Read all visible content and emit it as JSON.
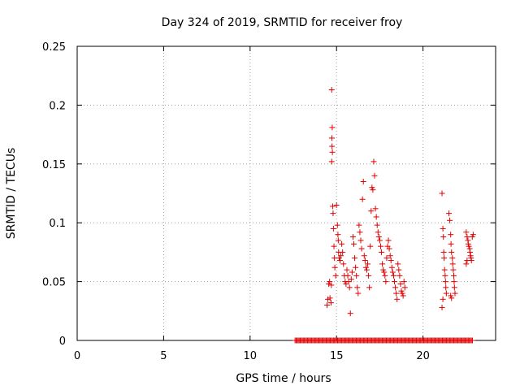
{
  "chart_data": {
    "type": "scatter",
    "title": "Day 324 of 2019, SRMTID for receiver froy",
    "xlabel": "GPS time / hours",
    "ylabel": "SRMTID / TECUs",
    "xlim": [
      0,
      24.2
    ],
    "ylim": [
      0,
      0.25
    ],
    "xticks": [
      0,
      5,
      10,
      15,
      20
    ],
    "yticks": [
      0,
      0.05,
      0.1,
      0.15,
      0.2,
      0.25
    ],
    "ytick_labels": [
      "0",
      "0.05",
      "0.1",
      "0.15",
      "0.2",
      "0.25"
    ],
    "grid": true,
    "marker": "plus",
    "color": "#e00000",
    "series": [
      {
        "points": [
          [
            14.45,
            0.03
          ],
          [
            14.5,
            0.035
          ],
          [
            14.55,
            0.048
          ],
          [
            14.6,
            0.05
          ],
          [
            14.62,
            0.036
          ],
          [
            14.68,
            0.032
          ],
          [
            14.7,
            0.047
          ],
          [
            14.72,
            0.213
          ],
          [
            14.75,
            0.181
          ],
          [
            14.73,
            0.172
          ],
          [
            14.74,
            0.165
          ],
          [
            14.76,
            0.16
          ],
          [
            14.72,
            0.152
          ],
          [
            14.78,
            0.114
          ],
          [
            14.8,
            0.108
          ],
          [
            14.82,
            0.095
          ],
          [
            14.85,
            0.08
          ],
          [
            14.88,
            0.07
          ],
          [
            14.9,
            0.062
          ],
          [
            14.95,
            0.055
          ],
          [
            15.0,
            0.115
          ],
          [
            15.05,
            0.098
          ],
          [
            15.08,
            0.09
          ],
          [
            15.1,
            0.085
          ],
          [
            15.12,
            0.075
          ],
          [
            15.15,
            0.07
          ],
          [
            15.2,
            0.068
          ],
          [
            15.25,
            0.072
          ],
          [
            15.3,
            0.082
          ],
          [
            15.35,
            0.075
          ],
          [
            15.4,
            0.065
          ],
          [
            15.45,
            0.055
          ],
          [
            15.5,
            0.05
          ],
          [
            15.55,
            0.048
          ],
          [
            15.6,
            0.06
          ],
          [
            15.65,
            0.055
          ],
          [
            15.7,
            0.05
          ],
          [
            15.75,
            0.045
          ],
          [
            15.8,
            0.023
          ],
          [
            15.85,
            0.052
          ],
          [
            15.9,
            0.058
          ],
          [
            15.95,
            0.088
          ],
          [
            16.0,
            0.082
          ],
          [
            16.05,
            0.07
          ],
          [
            16.1,
            0.062
          ],
          [
            16.15,
            0.055
          ],
          [
            16.2,
            0.045
          ],
          [
            16.25,
            0.04
          ],
          [
            16.3,
            0.098
          ],
          [
            16.35,
            0.092
          ],
          [
            16.4,
            0.085
          ],
          [
            16.45,
            0.078
          ],
          [
            16.5,
            0.12
          ],
          [
            16.55,
            0.135
          ],
          [
            16.6,
            0.072
          ],
          [
            16.65,
            0.068
          ],
          [
            16.7,
            0.062
          ],
          [
            16.75,
            0.06
          ],
          [
            16.8,
            0.065
          ],
          [
            16.85,
            0.055
          ],
          [
            16.9,
            0.045
          ],
          [
            16.95,
            0.08
          ],
          [
            17.0,
            0.11
          ],
          [
            17.05,
            0.13
          ],
          [
            17.1,
            0.128
          ],
          [
            17.15,
            0.152
          ],
          [
            17.2,
            0.14
          ],
          [
            17.25,
            0.112
          ],
          [
            17.3,
            0.105
          ],
          [
            17.35,
            0.098
          ],
          [
            17.4,
            0.092
          ],
          [
            17.45,
            0.088
          ],
          [
            17.5,
            0.085
          ],
          [
            17.55,
            0.08
          ],
          [
            17.6,
            0.075
          ],
          [
            17.65,
            0.065
          ],
          [
            17.7,
            0.06
          ],
          [
            17.75,
            0.058
          ],
          [
            17.8,
            0.055
          ],
          [
            17.85,
            0.05
          ],
          [
            17.9,
            0.07
          ],
          [
            17.95,
            0.08
          ],
          [
            18.0,
            0.085
          ],
          [
            18.05,
            0.078
          ],
          [
            18.1,
            0.072
          ],
          [
            18.15,
            0.068
          ],
          [
            18.2,
            0.062
          ],
          [
            18.25,
            0.058
          ],
          [
            18.3,
            0.055
          ],
          [
            18.35,
            0.05
          ],
          [
            18.4,
            0.045
          ],
          [
            18.45,
            0.04
          ],
          [
            18.5,
            0.035
          ],
          [
            18.55,
            0.065
          ],
          [
            18.6,
            0.06
          ],
          [
            18.65,
            0.055
          ],
          [
            18.7,
            0.048
          ],
          [
            18.75,
            0.042
          ],
          [
            18.8,
            0.04
          ],
          [
            18.85,
            0.038
          ],
          [
            18.9,
            0.05
          ],
          [
            18.95,
            0.045
          ],
          [
            21.1,
            0.125
          ],
          [
            21.15,
            0.095
          ],
          [
            21.18,
            0.088
          ],
          [
            21.2,
            0.075
          ],
          [
            21.22,
            0.07
          ],
          [
            21.25,
            0.06
          ],
          [
            21.28,
            0.055
          ],
          [
            21.3,
            0.05
          ],
          [
            21.32,
            0.045
          ],
          [
            21.35,
            0.04
          ],
          [
            21.1,
            0.028
          ],
          [
            21.15,
            0.035
          ],
          [
            21.5,
            0.108
          ],
          [
            21.55,
            0.102
          ],
          [
            21.6,
            0.09
          ],
          [
            21.62,
            0.082
          ],
          [
            21.65,
            0.075
          ],
          [
            21.7,
            0.07
          ],
          [
            21.72,
            0.065
          ],
          [
            21.75,
            0.06
          ],
          [
            21.78,
            0.055
          ],
          [
            21.8,
            0.05
          ],
          [
            21.82,
            0.045
          ],
          [
            21.85,
            0.04
          ],
          [
            21.6,
            0.038
          ],
          [
            21.65,
            0.036
          ],
          [
            22.5,
            0.092
          ],
          [
            22.55,
            0.088
          ],
          [
            22.6,
            0.085
          ],
          [
            22.62,
            0.082
          ],
          [
            22.65,
            0.08
          ],
          [
            22.7,
            0.078
          ],
          [
            22.72,
            0.075
          ],
          [
            22.75,
            0.072
          ],
          [
            22.78,
            0.07
          ],
          [
            22.8,
            0.068
          ],
          [
            22.85,
            0.088
          ],
          [
            22.9,
            0.09
          ],
          [
            22.5,
            0.065
          ],
          [
            22.55,
            0.068
          ]
        ]
      }
    ],
    "zero_band": {
      "y": 0,
      "x_start": 12.6,
      "x_end": 22.9
    }
  }
}
